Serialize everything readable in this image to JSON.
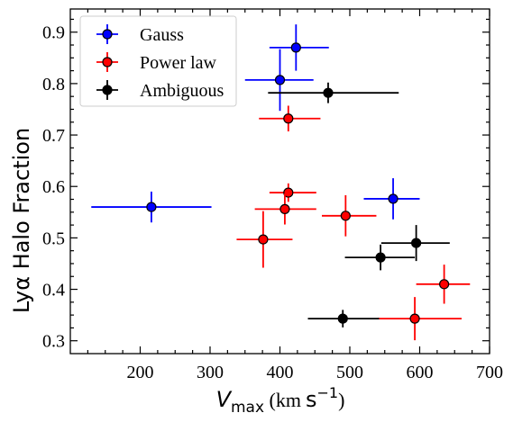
{
  "chart_data": {
    "type": "scatter",
    "xlabel": {
      "symbol": "V",
      "subscript": "max",
      "unit_open": " (km",
      "unit_s": "s",
      "unit_exp": "−1",
      "unit_close": ")"
    },
    "ylabel": "Lyα Halo Fraction",
    "xlim": [
      100,
      700
    ],
    "ylim": [
      0.275,
      0.945
    ],
    "x_ticks": [
      200,
      300,
      400,
      500,
      600,
      700
    ],
    "y_ticks": [
      0.3,
      0.4,
      0.5,
      0.6,
      0.7,
      0.8,
      0.9
    ],
    "x_minor_step": 25,
    "y_minor_step": 0.025,
    "legend_position": "top-left",
    "series": [
      {
        "name": "Gauss",
        "color": "#0000ff",
        "points": [
          {
            "x": 216,
            "y": 0.56,
            "xlo": 130,
            "xhi": 302,
            "yerr": 0.03
          },
          {
            "x": 400,
            "y": 0.807,
            "xlo": 350,
            "xhi": 448,
            "yerr": 0.06
          },
          {
            "x": 423,
            "y": 0.87,
            "xlo": 385,
            "xhi": 470,
            "yerr": 0.045
          },
          {
            "x": 562,
            "y": 0.576,
            "xlo": 520,
            "xhi": 600,
            "yerr": 0.04
          }
        ]
      },
      {
        "name": "Power law",
        "color": "#ff0000",
        "points": [
          {
            "x": 412,
            "y": 0.732,
            "xlo": 370,
            "xhi": 458,
            "yerr": 0.025
          },
          {
            "x": 412,
            "y": 0.588,
            "xlo": 385,
            "xhi": 452,
            "yerr": 0.018
          },
          {
            "x": 407,
            "y": 0.556,
            "xlo": 364,
            "xhi": 452,
            "yerr": 0.03
          },
          {
            "x": 376,
            "y": 0.497,
            "xlo": 338,
            "xhi": 418,
            "yerr": 0.055
          },
          {
            "x": 494,
            "y": 0.543,
            "xlo": 460,
            "xhi": 538,
            "yerr": 0.04
          },
          {
            "x": 635,
            "y": 0.41,
            "xlo": 595,
            "xhi": 672,
            "yerr": 0.038
          },
          {
            "x": 593,
            "y": 0.343,
            "xlo": 540,
            "xhi": 660,
            "yerr": 0.042
          }
        ]
      },
      {
        "name": "Ambiguous",
        "color": "#000000",
        "points": [
          {
            "x": 469,
            "y": 0.782,
            "xlo": 383,
            "xhi": 570,
            "yerr": 0.02
          },
          {
            "x": 595,
            "y": 0.49,
            "xlo": 545,
            "xhi": 643,
            "yerr": 0.035
          },
          {
            "x": 544,
            "y": 0.462,
            "xlo": 493,
            "xhi": 593,
            "yerr": 0.025
          },
          {
            "x": 490,
            "y": 0.343,
            "xlo": 440,
            "xhi": 542,
            "yerr": 0.017
          }
        ]
      }
    ]
  }
}
